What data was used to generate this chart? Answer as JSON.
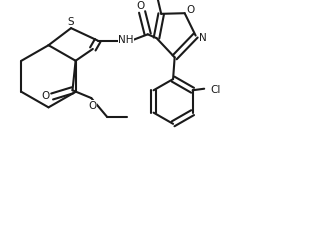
{
  "background": "#ffffff",
  "line_color": "#1a1a1a",
  "line_width": 1.5,
  "fig_width": 3.13,
  "fig_height": 2.28,
  "dpi": 100,
  "xlim": [
    0,
    10
  ],
  "ylim": [
    0,
    7.3
  ]
}
